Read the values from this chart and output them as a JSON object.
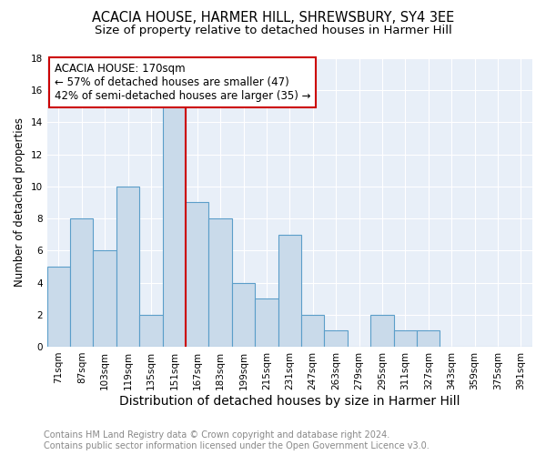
{
  "title": "ACACIA HOUSE, HARMER HILL, SHREWSBURY, SY4 3EE",
  "subtitle": "Size of property relative to detached houses in Harmer Hill",
  "xlabel": "Distribution of detached houses by size in Harmer Hill",
  "ylabel": "Number of detached properties",
  "categories": [
    "71sqm",
    "87sqm",
    "103sqm",
    "119sqm",
    "135sqm",
    "151sqm",
    "167sqm",
    "183sqm",
    "199sqm",
    "215sqm",
    "231sqm",
    "247sqm",
    "263sqm",
    "279sqm",
    "295sqm",
    "311sqm",
    "327sqm",
    "343sqm",
    "359sqm",
    "375sqm",
    "391sqm"
  ],
  "values": [
    5,
    8,
    6,
    10,
    2,
    15,
    9,
    8,
    4,
    3,
    7,
    2,
    1,
    0,
    2,
    1,
    1,
    0,
    0,
    0,
    0
  ],
  "bar_color": "#c9daea",
  "bar_edge_color": "#5b9ec9",
  "vline_x": 5.5,
  "vline_color": "#cc0000",
  "annotation_title": "ACACIA HOUSE: 170sqm",
  "annotation_line1": "← 57% of detached houses are smaller (47)",
  "annotation_line2": "42% of semi-detached houses are larger (35) →",
  "annotation_box_color": "#cc0000",
  "ylim": [
    0,
    18
  ],
  "yticks": [
    0,
    2,
    4,
    6,
    8,
    10,
    12,
    14,
    16,
    18
  ],
  "background_color": "#e8eff8",
  "grid_color": "#ffffff",
  "footer_line1": "Contains HM Land Registry data © Crown copyright and database right 2024.",
  "footer_line2": "Contains public sector information licensed under the Open Government Licence v3.0.",
  "title_fontsize": 10.5,
  "subtitle_fontsize": 9.5,
  "xlabel_fontsize": 10,
  "ylabel_fontsize": 8.5,
  "tick_fontsize": 7.5,
  "footer_fontsize": 7,
  "ann_fontsize": 8.5
}
